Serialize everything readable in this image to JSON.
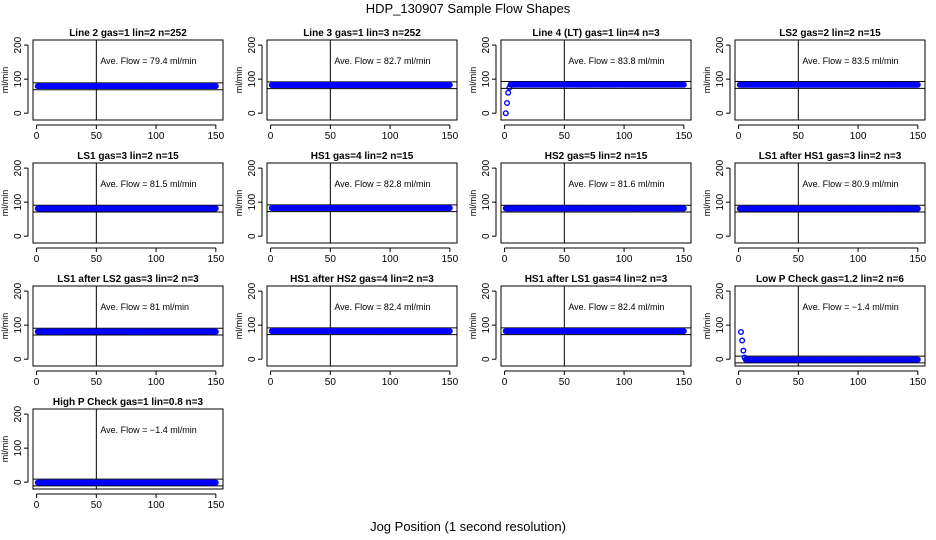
{
  "title": "HDP_130907  Sample Flow Shapes",
  "xlabel": "Jog Position (1 second resolution)",
  "colors": {
    "points": "#0000ff",
    "axes": "#000000"
  },
  "chart_data": [
    {
      "type": "scatter",
      "title": "Line 2 gas=1 lin=2 n=252",
      "ylabel": "ml/min",
      "annotation": "Ave. Flow =  79.4  ml/min",
      "xlim": [
        -3,
        156
      ],
      "ylim": [
        -20,
        215
      ],
      "xticks": [
        0,
        50,
        100,
        150
      ],
      "yticks": [
        0,
        100,
        200
      ],
      "vline": 50,
      "hlines": [
        69,
        89
      ],
      "level": 79.4,
      "x_range": [
        1,
        150
      ],
      "early_points": []
    },
    {
      "type": "scatter",
      "title": "Line 3 gas=1 lin=3 n=252",
      "ylabel": "ml/min",
      "annotation": "Ave. Flow =  82.7  ml/min",
      "xlim": [
        -3,
        156
      ],
      "ylim": [
        -20,
        215
      ],
      "xticks": [
        0,
        50,
        100,
        150
      ],
      "yticks": [
        0,
        100,
        200
      ],
      "vline": 50,
      "hlines": [
        72,
        92
      ],
      "level": 82.7,
      "x_range": [
        1,
        150
      ],
      "early_points": []
    },
    {
      "type": "scatter",
      "title": "Line 4 (LT) gas=1 lin=4 n=3",
      "ylabel": "ml/min",
      "annotation": "Ave. Flow =  83.8  ml/min",
      "xlim": [
        -3,
        156
      ],
      "ylim": [
        -20,
        215
      ],
      "xticks": [
        0,
        50,
        100,
        150
      ],
      "yticks": [
        0,
        100,
        200
      ],
      "vline": 50,
      "hlines": [
        73,
        93
      ],
      "level": 83.8,
      "x_range": [
        5,
        150
      ],
      "early_points": [
        {
          "x": 1,
          "y": 0
        },
        {
          "x": 2,
          "y": 30
        },
        {
          "x": 3,
          "y": 60
        },
        {
          "x": 4,
          "y": 75
        }
      ]
    },
    {
      "type": "scatter",
      "title": "LS2 gas=2 lin=2 n=15",
      "ylabel": "ml/min",
      "annotation": "Ave. Flow =  83.5  ml/min",
      "xlim": [
        -3,
        156
      ],
      "ylim": [
        -20,
        215
      ],
      "xticks": [
        0,
        50,
        100,
        150
      ],
      "yticks": [
        0,
        100,
        200
      ],
      "vline": 50,
      "hlines": [
        73,
        93
      ],
      "level": 83.5,
      "x_range": [
        1,
        150
      ],
      "early_points": []
    },
    {
      "type": "scatter",
      "title": "LS1 gas=3 lin=2 n=15",
      "ylabel": "ml/min",
      "annotation": "Ave. Flow =  81.5  ml/min",
      "xlim": [
        -3,
        156
      ],
      "ylim": [
        -20,
        215
      ],
      "xticks": [
        0,
        50,
        100,
        150
      ],
      "yticks": [
        0,
        100,
        200
      ],
      "vline": 50,
      "hlines": [
        71,
        91
      ],
      "level": 81.5,
      "x_range": [
        1,
        150
      ],
      "early_points": []
    },
    {
      "type": "scatter",
      "title": "HS1 gas=4 lin=2 n=15",
      "ylabel": "ml/min",
      "annotation": "Ave. Flow =  82.8  ml/min",
      "xlim": [
        -3,
        156
      ],
      "ylim": [
        -20,
        215
      ],
      "xticks": [
        0,
        50,
        100,
        150
      ],
      "yticks": [
        0,
        100,
        200
      ],
      "vline": 50,
      "hlines": [
        72,
        92
      ],
      "level": 82.8,
      "x_range": [
        1,
        150
      ],
      "early_points": []
    },
    {
      "type": "scatter",
      "title": "HS2 gas=5 lin=2 n=15",
      "ylabel": "ml/min",
      "annotation": "Ave. Flow =  81.6  ml/min",
      "xlim": [
        -3,
        156
      ],
      "ylim": [
        -20,
        215
      ],
      "xticks": [
        0,
        50,
        100,
        150
      ],
      "yticks": [
        0,
        100,
        200
      ],
      "vline": 50,
      "hlines": [
        71,
        91
      ],
      "level": 81.6,
      "x_range": [
        1,
        150
      ],
      "early_points": []
    },
    {
      "type": "scatter",
      "title": "LS1 after HS1 gas=3 lin=2 n=3",
      "ylabel": "ml/min",
      "annotation": "Ave. Flow =  80.9  ml/min",
      "xlim": [
        -3,
        156
      ],
      "ylim": [
        -20,
        215
      ],
      "xticks": [
        0,
        50,
        100,
        150
      ],
      "yticks": [
        0,
        100,
        200
      ],
      "vline": 50,
      "hlines": [
        71,
        91
      ],
      "level": 80.9,
      "x_range": [
        1,
        150
      ],
      "early_points": []
    },
    {
      "type": "scatter",
      "title": "LS1 after LS2 gas=3 lin=2 n=3",
      "ylabel": "ml/min",
      "annotation": "Ave. Flow =  81  ml/min",
      "xlim": [
        -3,
        156
      ],
      "ylim": [
        -20,
        215
      ],
      "xticks": [
        0,
        50,
        100,
        150
      ],
      "yticks": [
        0,
        100,
        200
      ],
      "vline": 50,
      "hlines": [
        71,
        91
      ],
      "level": 81,
      "x_range": [
        1,
        150
      ],
      "early_points": []
    },
    {
      "type": "scatter",
      "title": "HS1 after HS2 gas=4 lin=2 n=3",
      "ylabel": "ml/min",
      "annotation": "Ave. Flow =  82.4  ml/min",
      "xlim": [
        -3,
        156
      ],
      "ylim": [
        -20,
        215
      ],
      "xticks": [
        0,
        50,
        100,
        150
      ],
      "yticks": [
        0,
        100,
        200
      ],
      "vline": 50,
      "hlines": [
        72,
        92
      ],
      "level": 82.4,
      "x_range": [
        1,
        150
      ],
      "early_points": []
    },
    {
      "type": "scatter",
      "title": "HS1 after LS1 gas=4 lin=2 n=3",
      "ylabel": "ml/min",
      "annotation": "Ave. Flow =  82.4  ml/min",
      "xlim": [
        -3,
        156
      ],
      "ylim": [
        -20,
        215
      ],
      "xticks": [
        0,
        50,
        100,
        150
      ],
      "yticks": [
        0,
        100,
        200
      ],
      "vline": 50,
      "hlines": [
        72,
        92
      ],
      "level": 82.4,
      "x_range": [
        1,
        150
      ],
      "early_points": []
    },
    {
      "type": "scatter",
      "title": "Low P Check gas=1.2 lin=2 n=6",
      "ylabel": "ml/min",
      "annotation": "Ave. Flow =  −1.4  ml/min",
      "xlim": [
        -3,
        156
      ],
      "ylim": [
        -20,
        215
      ],
      "xticks": [
        0,
        50,
        100,
        150
      ],
      "yticks": [
        0,
        100,
        200
      ],
      "vline": 50,
      "hlines": [
        -11,
        9
      ],
      "level": -1.4,
      "x_range": [
        6,
        150
      ],
      "early_points": [
        {
          "x": 2,
          "y": 80
        },
        {
          "x": 3,
          "y": 55
        },
        {
          "x": 4,
          "y": 25
        },
        {
          "x": 5,
          "y": 5
        }
      ]
    },
    {
      "type": "scatter",
      "title": "High P Check gas=1 lin=0.8 n=3",
      "ylabel": "ml/min",
      "annotation": "Ave. Flow =  −1.4  ml/min",
      "xlim": [
        -3,
        156
      ],
      "ylim": [
        -20,
        215
      ],
      "xticks": [
        0,
        50,
        100,
        150
      ],
      "yticks": [
        0,
        100,
        200
      ],
      "vline": 50,
      "hlines": [
        -11,
        9
      ],
      "level": -1.4,
      "x_range": [
        1,
        150
      ],
      "early_points": []
    }
  ]
}
